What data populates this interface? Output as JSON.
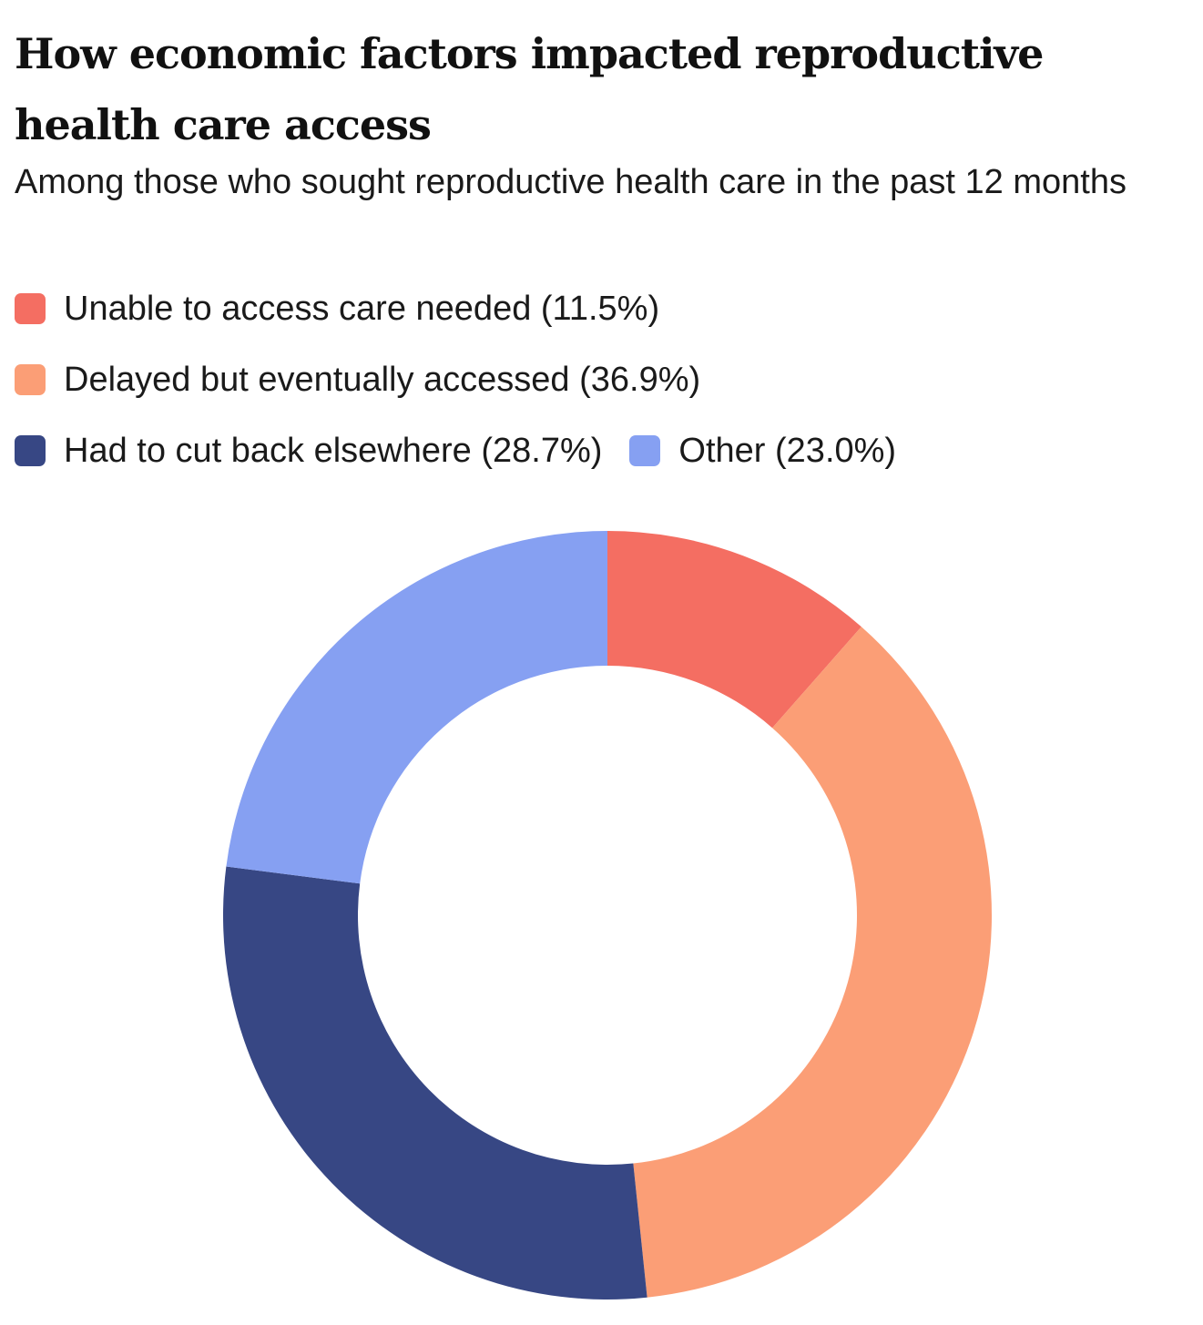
{
  "chart_data": {
    "type": "pie",
    "title": "How economic factors impacted reproductive health care access",
    "subtitle": "Among those who sought reproductive health care in the past 12 months",
    "legend_position": "top-left",
    "donut": true,
    "slices": [
      {
        "label": "Unable to access care needed (11.5%)",
        "value": 11.5,
        "color": "#F46E62"
      },
      {
        "label": "Delayed but eventually accessed (36.9%)",
        "value": 36.9,
        "color": "#FB9E76"
      },
      {
        "label": "Had to cut back elsewhere (28.7%)",
        "value": 28.7,
        "color": "#374784"
      },
      {
        "label": "Other (23.0%)",
        "value": 23.0,
        "color": "#86A0F2"
      }
    ]
  }
}
